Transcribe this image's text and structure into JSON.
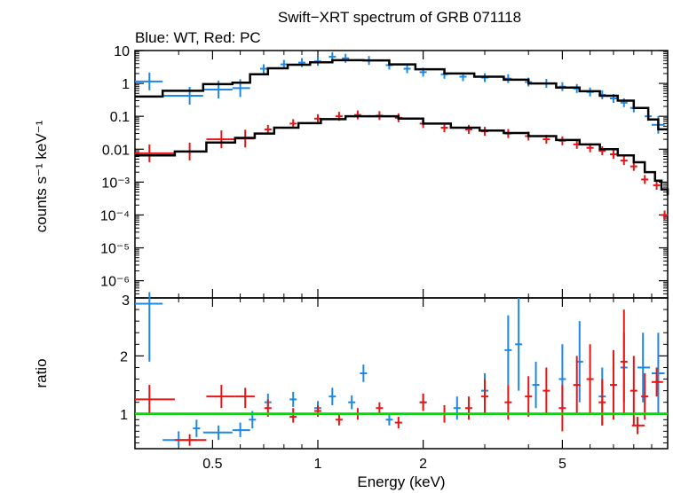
{
  "title": "Swift−XRT spectrum of GRB 071118",
  "subtitle": "Blue: WT, Red: PC",
  "chart_data": [
    {
      "type": "scatter",
      "panel": "spectrum",
      "ylabel": "counts s⁻¹ keV⁻¹",
      "xscale": "log",
      "yscale": "log",
      "xlim": [
        0.3,
        10
      ],
      "ylim": [
        3e-07,
        10
      ],
      "x_ticks": [
        0.5,
        1,
        2,
        5
      ],
      "y_tick_labels": [
        "10",
        "1",
        "0.1",
        "0.01",
        "10⁻³",
        "10⁻⁴",
        "10⁻⁵",
        "10⁻⁶"
      ],
      "series": [
        {
          "name": "WT",
          "color": "#1e88e5",
          "points": [
            {
              "x": 0.33,
              "y": 1.15,
              "xerr": [
                0.3,
                0.36
              ]
            },
            {
              "x": 0.43,
              "y": 0.42,
              "xerr": [
                0.36,
                0.47
              ]
            },
            {
              "x": 0.52,
              "y": 0.65,
              "xerr": [
                0.47,
                0.57
              ]
            },
            {
              "x": 0.6,
              "y": 0.72,
              "xerr": [
                0.57,
                0.64
              ]
            },
            {
              "x": 0.7,
              "y": 2.8
            },
            {
              "x": 0.8,
              "y": 3.8
            },
            {
              "x": 0.9,
              "y": 4.3
            },
            {
              "x": 1.0,
              "y": 4.7
            },
            {
              "x": 1.1,
              "y": 6.5
            },
            {
              "x": 1.2,
              "y": 5.8
            },
            {
              "x": 1.4,
              "y": 5.0
            },
            {
              "x": 1.6,
              "y": 3.6
            },
            {
              "x": 1.8,
              "y": 2.8
            },
            {
              "x": 2.0,
              "y": 2.2
            },
            {
              "x": 2.3,
              "y": 1.9
            },
            {
              "x": 2.6,
              "y": 1.6
            },
            {
              "x": 3.0,
              "y": 1.5
            },
            {
              "x": 3.5,
              "y": 1.4
            },
            {
              "x": 4.0,
              "y": 1.1
            },
            {
              "x": 4.5,
              "y": 1.0
            },
            {
              "x": 5.0,
              "y": 0.8
            },
            {
              "x": 5.5,
              "y": 0.7
            },
            {
              "x": 6.0,
              "y": 0.55
            },
            {
              "x": 6.5,
              "y": 0.45
            },
            {
              "x": 7.0,
              "y": 0.35
            },
            {
              "x": 7.5,
              "y": 0.26
            },
            {
              "x": 8.0,
              "y": 0.18
            },
            {
              "x": 8.8,
              "y": 0.1
            },
            {
              "x": 9.4,
              "y": 0.055,
              "xerr": [
                9.0,
                9.8
              ]
            }
          ]
        },
        {
          "name": "PC",
          "color": "#e81515",
          "points": [
            {
              "x": 0.33,
              "y": 0.0075,
              "xerr": [
                0.3,
                0.39
              ]
            },
            {
              "x": 0.43,
              "y": 0.0085,
              "xerr": [
                0.39,
                0.48
              ]
            },
            {
              "x": 0.53,
              "y": 0.02,
              "xerr": [
                0.48,
                0.58
              ]
            },
            {
              "x": 0.62,
              "y": 0.021,
              "xerr": [
                0.58,
                0.66
              ]
            },
            {
              "x": 0.72,
              "y": 0.04
            },
            {
              "x": 0.85,
              "y": 0.06
            },
            {
              "x": 1.0,
              "y": 0.085
            },
            {
              "x": 1.15,
              "y": 0.1
            },
            {
              "x": 1.3,
              "y": 0.11
            },
            {
              "x": 1.5,
              "y": 0.105
            },
            {
              "x": 1.7,
              "y": 0.09
            },
            {
              "x": 2.0,
              "y": 0.06
            },
            {
              "x": 2.3,
              "y": 0.045
            },
            {
              "x": 2.7,
              "y": 0.04
            },
            {
              "x": 3.0,
              "y": 0.035
            },
            {
              "x": 3.5,
              "y": 0.03
            },
            {
              "x": 4.0,
              "y": 0.025
            },
            {
              "x": 4.5,
              "y": 0.02
            },
            {
              "x": 5.0,
              "y": 0.018
            },
            {
              "x": 5.5,
              "y": 0.014
            },
            {
              "x": 6.0,
              "y": 0.011
            },
            {
              "x": 6.5,
              "y": 0.009
            },
            {
              "x": 7.0,
              "y": 0.007
            },
            {
              "x": 7.5,
              "y": 0.0045
            },
            {
              "x": 8.0,
              "y": 0.003
            },
            {
              "x": 8.6,
              "y": 0.0012
            },
            {
              "x": 9.3,
              "y": 0.0008
            },
            {
              "x": 9.8,
              "y": 0.0001
            }
          ]
        }
      ],
      "models": [
        {
          "name": "WT model",
          "color": "#000000",
          "steps": [
            [
              0.3,
              0.4
            ],
            [
              0.36,
              0.6
            ],
            [
              0.47,
              0.95
            ],
            [
              0.57,
              1.05
            ],
            [
              0.64,
              1.9
            ],
            [
              0.72,
              2.9
            ],
            [
              0.82,
              3.7
            ],
            [
              0.95,
              4.4
            ],
            [
              1.1,
              5.1
            ],
            [
              1.35,
              5.0
            ],
            [
              1.6,
              3.8
            ],
            [
              1.9,
              2.7
            ],
            [
              2.3,
              2.0
            ],
            [
              2.8,
              1.6
            ],
            [
              3.4,
              1.3
            ],
            [
              4.0,
              1.0
            ],
            [
              4.8,
              0.75
            ],
            [
              5.6,
              0.58
            ],
            [
              6.4,
              0.42
            ],
            [
              7.2,
              0.3
            ],
            [
              8.0,
              0.18
            ],
            [
              8.8,
              0.08
            ],
            [
              9.4,
              0.04
            ],
            [
              10,
              0.04
            ]
          ]
        },
        {
          "name": "PC model",
          "color": "#000000",
          "steps": [
            [
              0.3,
              0.0065
            ],
            [
              0.39,
              0.0085
            ],
            [
              0.48,
              0.016
            ],
            [
              0.58,
              0.022
            ],
            [
              0.66,
              0.03
            ],
            [
              0.75,
              0.045
            ],
            [
              0.88,
              0.062
            ],
            [
              1.02,
              0.082
            ],
            [
              1.2,
              0.1
            ],
            [
              1.45,
              0.1
            ],
            [
              1.7,
              0.085
            ],
            [
              2.0,
              0.06
            ],
            [
              2.4,
              0.045
            ],
            [
              2.9,
              0.037
            ],
            [
              3.4,
              0.031
            ],
            [
              4.0,
              0.025
            ],
            [
              4.8,
              0.019
            ],
            [
              5.6,
              0.014
            ],
            [
              6.4,
              0.01
            ],
            [
              7.2,
              0.0065
            ],
            [
              8.0,
              0.004
            ],
            [
              8.6,
              0.002
            ],
            [
              9.2,
              0.0011
            ],
            [
              9.6,
              0.0006
            ],
            [
              10,
              0.0004
            ]
          ]
        }
      ]
    },
    {
      "type": "scatter",
      "panel": "ratio",
      "xlabel": "Energy (keV)",
      "ylabel": "ratio",
      "xscale": "log",
      "xlim": [
        0.3,
        10
      ],
      "ylim": [
        0.4,
        3
      ],
      "x_ticks": [
        0.5,
        1,
        2,
        5
      ],
      "x_tick_labels": [
        "0.5",
        "1",
        "2",
        "5"
      ],
      "y_ticks": [
        1,
        2,
        3
      ],
      "y_tick_labels": [
        "1",
        "2",
        "3"
      ],
      "reference_line": {
        "y": 1,
        "color": "#00dd00"
      },
      "series": [
        {
          "name": "WT",
          "color": "#1e88e5",
          "points": [
            {
              "x": 0.33,
              "y": 2.9,
              "xerr": [
                0.3,
                0.36
              ],
              "yerr": [
                1.9,
                3.1
              ]
            },
            {
              "x": 0.4,
              "y": 0.55,
              "xerr": [
                0.36,
                0.45
              ],
              "yerr": [
                0.45,
                0.7
              ]
            },
            {
              "x": 0.45,
              "y": 0.75,
              "yerr": [
                0.6,
                0.9
              ]
            },
            {
              "x": 0.52,
              "y": 0.68,
              "xerr": [
                0.47,
                0.57
              ],
              "yerr": [
                0.55,
                0.8
              ]
            },
            {
              "x": 0.6,
              "y": 0.72,
              "xerr": [
                0.57,
                0.64
              ],
              "yerr": [
                0.6,
                0.85
              ]
            },
            {
              "x": 0.65,
              "y": 0.9,
              "yerr": [
                0.75,
                1.05
              ]
            },
            {
              "x": 0.72,
              "y": 1.2,
              "yerr": [
                1.1,
                1.35
              ]
            },
            {
              "x": 0.85,
              "y": 1.25,
              "yerr": [
                1.12,
                1.38
              ]
            },
            {
              "x": 1.0,
              "y": 1.1,
              "yerr": [
                1.0,
                1.22
              ]
            },
            {
              "x": 1.1,
              "y": 1.3,
              "yerr": [
                1.15,
                1.45
              ]
            },
            {
              "x": 1.25,
              "y": 1.2,
              "yerr": [
                1.08,
                1.32
              ]
            },
            {
              "x": 1.35,
              "y": 1.7,
              "yerr": [
                1.55,
                1.85
              ]
            },
            {
              "x": 1.6,
              "y": 0.9,
              "yerr": [
                0.8,
                1.0
              ]
            },
            {
              "x": 2.0,
              "y": 1.2,
              "yerr": [
                1.05,
                1.35
              ]
            },
            {
              "x": 2.5,
              "y": 1.1,
              "yerr": [
                0.9,
                1.3
              ]
            },
            {
              "x": 3.0,
              "y": 1.4,
              "yerr": [
                1.1,
                1.7
              ]
            },
            {
              "x": 3.5,
              "y": 2.1,
              "yerr": [
                1.5,
                2.7
              ]
            },
            {
              "x": 3.75,
              "y": 2.2,
              "yerr": [
                1.4,
                3.0
              ]
            },
            {
              "x": 4.2,
              "y": 1.5,
              "yerr": [
                1.1,
                1.9
              ]
            },
            {
              "x": 5.0,
              "y": 1.6,
              "yerr": [
                1.0,
                2.2
              ]
            },
            {
              "x": 5.6,
              "y": 1.9,
              "yerr": [
                1.2,
                2.6
              ]
            },
            {
              "x": 6.5,
              "y": 1.3,
              "yerr": [
                0.8,
                1.8
              ]
            },
            {
              "x": 7.5,
              "y": 1.8,
              "yerr": [
                1.2,
                2.4
              ]
            },
            {
              "x": 8.5,
              "y": 1.8,
              "xerr": [
                8.2,
                8.9
              ],
              "yerr": [
                1.2,
                2.4
              ]
            },
            {
              "x": 9.4,
              "y": 1.7,
              "xerr": [
                9.0,
                9.8
              ],
              "yerr": [
                1.0,
                2.4
              ]
            }
          ]
        },
        {
          "name": "PC",
          "color": "#e81515",
          "points": [
            {
              "x": 0.33,
              "y": 1.25,
              "xerr": [
                0.3,
                0.39
              ],
              "yerr": [
                1.0,
                1.5
              ]
            },
            {
              "x": 0.43,
              "y": 0.55,
              "xerr": [
                0.39,
                0.48
              ],
              "yerr": [
                0.45,
                0.65
              ]
            },
            {
              "x": 0.53,
              "y": 1.3,
              "xerr": [
                0.48,
                0.58
              ],
              "yerr": [
                1.1,
                1.5
              ]
            },
            {
              "x": 0.62,
              "y": 1.3,
              "xerr": [
                0.58,
                0.66
              ],
              "yerr": [
                1.1,
                1.45
              ]
            },
            {
              "x": 0.72,
              "y": 1.1,
              "yerr": [
                0.95,
                1.25
              ]
            },
            {
              "x": 0.85,
              "y": 0.95,
              "yerr": [
                0.85,
                1.1
              ]
            },
            {
              "x": 1.0,
              "y": 1.05,
              "yerr": [
                0.95,
                1.15
              ]
            },
            {
              "x": 1.15,
              "y": 0.9,
              "yerr": [
                0.8,
                1.0
              ]
            },
            {
              "x": 1.3,
              "y": 1.0,
              "yerr": [
                0.9,
                1.1
              ]
            },
            {
              "x": 1.5,
              "y": 1.1,
              "yerr": [
                1.0,
                1.2
              ]
            },
            {
              "x": 1.7,
              "y": 0.85,
              "yerr": [
                0.75,
                0.95
              ]
            },
            {
              "x": 2.0,
              "y": 1.2,
              "yerr": [
                1.05,
                1.35
              ]
            },
            {
              "x": 2.3,
              "y": 1.0,
              "yerr": [
                0.85,
                1.15
              ]
            },
            {
              "x": 2.7,
              "y": 1.1,
              "yerr": [
                0.9,
                1.3
              ]
            },
            {
              "x": 3.0,
              "y": 1.3,
              "yerr": [
                1.0,
                1.6
              ]
            },
            {
              "x": 3.5,
              "y": 1.2,
              "yerr": [
                0.9,
                1.5
              ]
            },
            {
              "x": 4.0,
              "y": 1.3,
              "yerr": [
                0.95,
                1.65
              ]
            },
            {
              "x": 4.5,
              "y": 1.4,
              "yerr": [
                1.0,
                1.8
              ]
            },
            {
              "x": 5.0,
              "y": 1.1,
              "yerr": [
                0.7,
                1.5
              ]
            },
            {
              "x": 5.5,
              "y": 1.5,
              "yerr": [
                1.0,
                2.0
              ]
            },
            {
              "x": 6.0,
              "y": 1.6,
              "yerr": [
                1.0,
                2.2
              ]
            },
            {
              "x": 6.5,
              "y": 1.2,
              "yerr": [
                0.8,
                1.6
              ]
            },
            {
              "x": 7.0,
              "y": 1.5,
              "yerr": [
                0.9,
                2.1
              ]
            },
            {
              "x": 7.5,
              "y": 1.9,
              "yerr": [
                1.0,
                2.8
              ]
            },
            {
              "x": 8.0,
              "y": 1.4,
              "yerr": [
                0.8,
                2.0
              ]
            },
            {
              "x": 8.6,
              "y": 1.3,
              "yerr": [
                0.9,
                1.7
              ]
            },
            {
              "x": 9.3,
              "y": 1.55,
              "xerr": [
                9.0,
                9.7
              ],
              "yerr": [
                1.3,
                1.8
              ]
            },
            {
              "x": 8.2,
              "y": 0.8,
              "xerr": [
                7.9,
                8.6
              ],
              "yerr": [
                0.65,
                0.95
              ]
            }
          ]
        }
      ]
    }
  ]
}
